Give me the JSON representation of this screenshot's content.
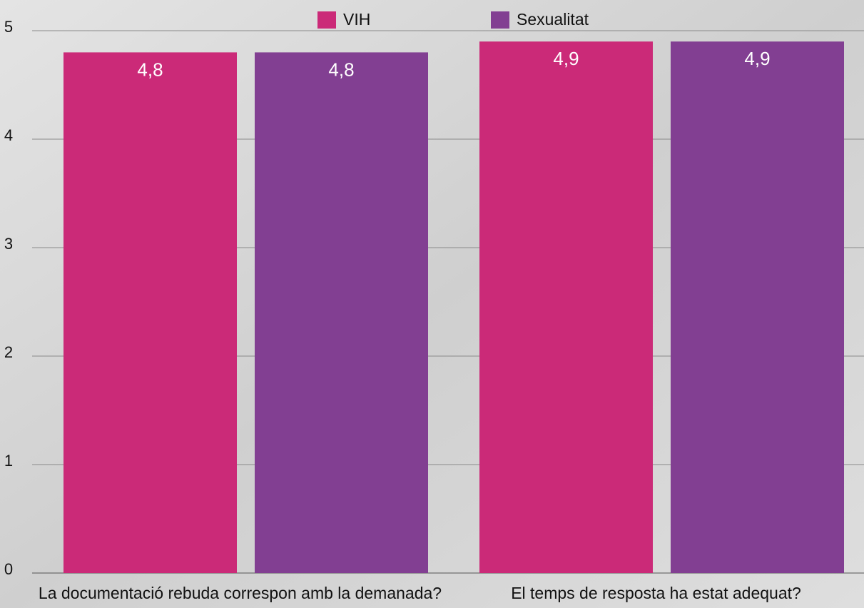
{
  "chart_data": {
    "type": "bar",
    "categories": [
      "La documentació rebuda correspon amb la demanada?",
      "El temps de resposta ha estat adequat?"
    ],
    "series": [
      {
        "name": "VIH",
        "color": "#cb2a78",
        "values": [
          4.8,
          4.9
        ],
        "value_labels": [
          "4,8",
          "4,9"
        ]
      },
      {
        "name": "Sexualitat",
        "color": "#823f92",
        "values": [
          4.8,
          4.9
        ],
        "value_labels": [
          "4,8",
          "4,9"
        ]
      }
    ],
    "ylim": [
      0,
      5
    ],
    "yticks": [
      0,
      1,
      2,
      3,
      4,
      5
    ],
    "grid": true,
    "legend": "top"
  }
}
